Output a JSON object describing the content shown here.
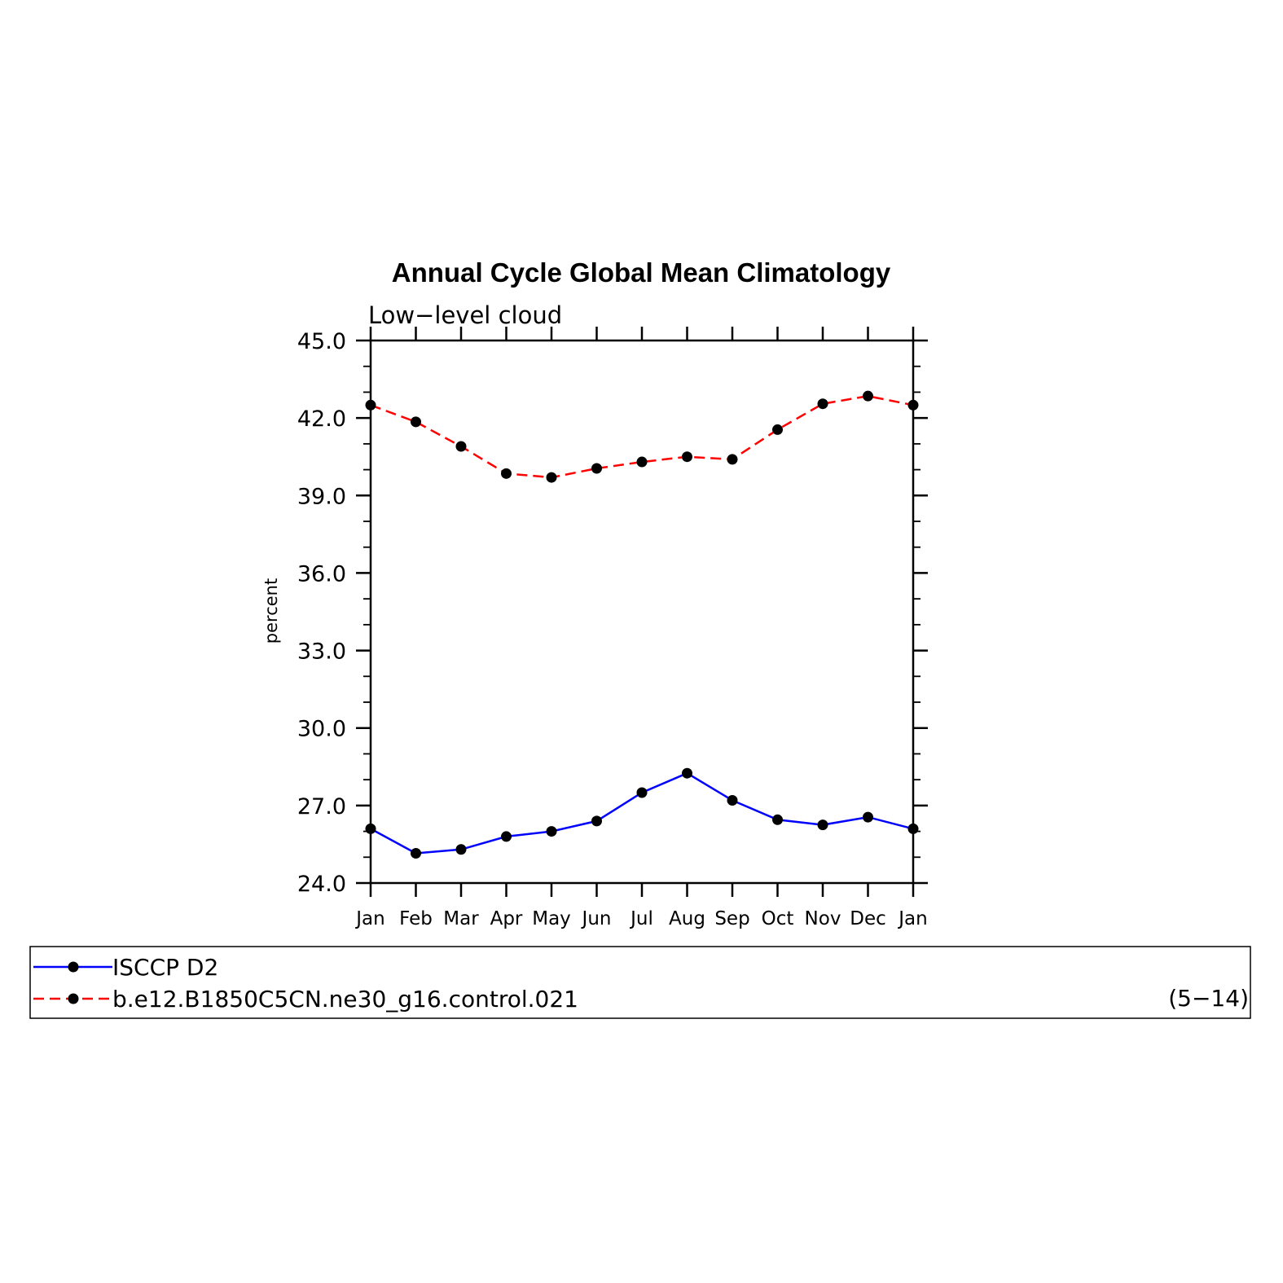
{
  "chart_data": {
    "type": "line",
    "title": "Annual Cycle Global Mean Climatology",
    "subtitle": "Low−level cloud",
    "ylabel": "percent",
    "xlabel": "",
    "categories": [
      "Jan",
      "Feb",
      "Mar",
      "Apr",
      "May",
      "Jun",
      "Jul",
      "Aug",
      "Sep",
      "Oct",
      "Nov",
      "Dec",
      "Jan"
    ],
    "ylim": [
      24.0,
      45.0
    ],
    "yticks": [
      "24.0",
      "27.0",
      "30.0",
      "33.0",
      "36.0",
      "39.0",
      "42.0",
      "45.0"
    ],
    "grid": false,
    "series": [
      {
        "name": "ISCCP D2",
        "color": "#0000ff",
        "line_style": "solid",
        "values": [
          26.1,
          25.15,
          25.3,
          25.8,
          26.0,
          26.4,
          27.5,
          28.25,
          27.2,
          26.45,
          26.25,
          26.55,
          26.1
        ]
      },
      {
        "name": "b.e12.B1850C5CN.ne30_g16.control.021",
        "color": "#ff0000",
        "line_style": "dashed",
        "values": [
          42.5,
          41.85,
          40.9,
          39.85,
          39.7,
          40.05,
          40.3,
          40.5,
          40.4,
          41.55,
          42.55,
          42.85,
          42.5
        ]
      }
    ],
    "legend_position": "bottom",
    "legend_note": "(5−14)"
  }
}
